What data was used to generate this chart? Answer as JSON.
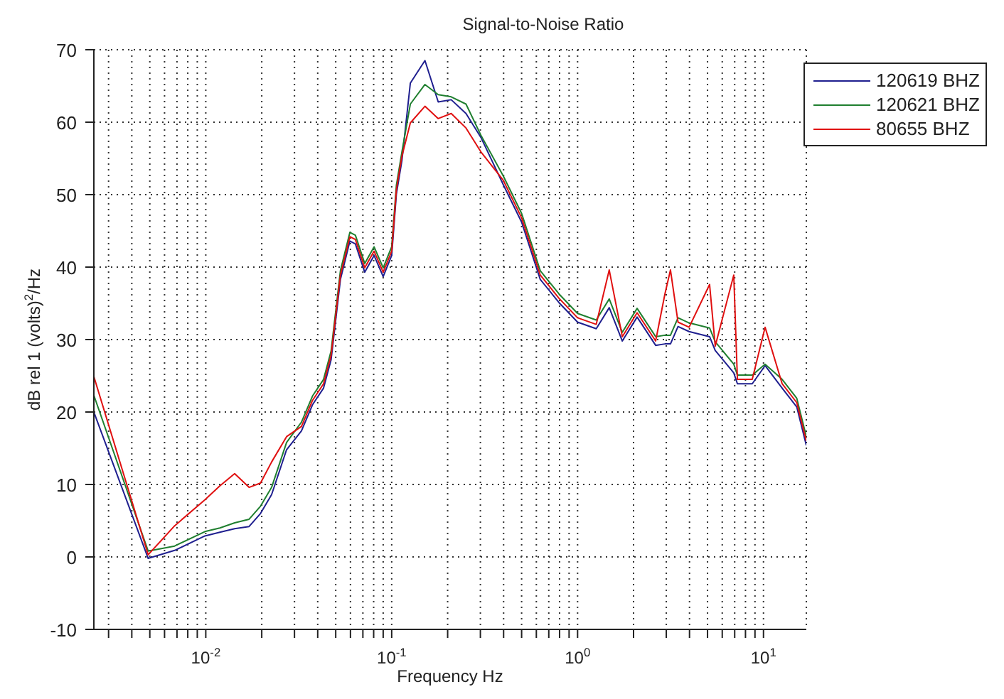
{
  "chart_data": {
    "type": "line",
    "title": "Signal-to-Noise Ratio",
    "xlabel": "Frequency Hz",
    "ylabel": "dB rel 1 (volts)$^{2}$/Hz",
    "log": "x",
    "grid": true,
    "legend": "top right",
    "marker": "none",
    "line_style": "solid",
    "xlim": [
      0.0025,
      17
    ],
    "ylim": [
      -10,
      70
    ],
    "xticks": [
      {
        "value": 0.003,
        "label": null
      },
      {
        "value": 0.004,
        "label": null
      },
      {
        "value": 0.005,
        "label": null
      },
      {
        "value": 0.006,
        "label": null
      },
      {
        "value": 0.007,
        "label": null
      },
      {
        "value": 0.008,
        "label": null
      },
      {
        "value": 0.009,
        "label": null
      },
      {
        "value": 0.01,
        "label": "10$^{-2}$"
      },
      {
        "value": 0.02,
        "label": null
      },
      {
        "value": 0.03,
        "label": null
      },
      {
        "value": 0.04,
        "label": null
      },
      {
        "value": 0.05,
        "label": null
      },
      {
        "value": 0.06,
        "label": null
      },
      {
        "value": 0.07,
        "label": null
      },
      {
        "value": 0.08,
        "label": null
      },
      {
        "value": 0.09,
        "label": null
      },
      {
        "value": 0.1,
        "label": "10$^{-1}$"
      },
      {
        "value": 0.2,
        "label": null
      },
      {
        "value": 0.3,
        "label": null
      },
      {
        "value": 0.4,
        "label": null
      },
      {
        "value": 0.5,
        "label": null
      },
      {
        "value": 0.6,
        "label": null
      },
      {
        "value": 0.7,
        "label": null
      },
      {
        "value": 0.8,
        "label": null
      },
      {
        "value": 0.9,
        "label": null
      },
      {
        "value": 1,
        "label": "10$^{0}$"
      },
      {
        "value": 2,
        "label": null
      },
      {
        "value": 3,
        "label": null
      },
      {
        "value": 4,
        "label": null
      },
      {
        "value": 5,
        "label": null
      },
      {
        "value": 6,
        "label": null
      },
      {
        "value": 7,
        "label": null
      },
      {
        "value": 8,
        "label": null
      },
      {
        "value": 9,
        "label": null
      },
      {
        "value": 10,
        "label": "10$^{1}$"
      }
    ],
    "yticks": [
      -10,
      0,
      10,
      20,
      30,
      40,
      50,
      60,
      70
    ],
    "x": [
      0.0025,
      0.0049,
      0.0068,
      0.0099,
      0.0119,
      0.0143,
      0.0171,
      0.0197,
      0.0226,
      0.0272,
      0.0327,
      0.0375,
      0.043,
      0.0472,
      0.053,
      0.0596,
      0.0638,
      0.0716,
      0.0804,
      0.09,
      0.1,
      0.106,
      0.1135,
      0.126,
      0.151,
      0.178,
      0.209,
      0.251,
      0.302,
      0.398,
      0.5,
      0.63,
      0.794,
      1,
      1.26,
      1.48,
      1.74,
      2.09,
      2.63,
      2.95,
      3.16,
      3.47,
      3.98,
      5.13,
      5.5,
      6.92,
      7.24,
      8.7,
      10.2,
      12.6,
      15.1,
      17
    ],
    "series": [
      {
        "name": "120619 BHZ",
        "color": "#1f1f8f",
        "values": [
          20,
          -0.2,
          0.9,
          2.9,
          3.4,
          3.9,
          4.2,
          6,
          8.6,
          14.8,
          17.4,
          21,
          23.3,
          27.2,
          38.3,
          43.6,
          43.2,
          39.3,
          41.6,
          38.7,
          41.6,
          50.1,
          54.7,
          65.4,
          68.5,
          62.8,
          63.1,
          61.2,
          57.9,
          51.4,
          46.2,
          38.3,
          35.1,
          32.4,
          31.5,
          34.4,
          29.8,
          33.1,
          29.2,
          29.4,
          29.4,
          31.8,
          31.1,
          30.4,
          28.5,
          25.4,
          23.9,
          23.9,
          26.4,
          23.3,
          20.7,
          15.4
        ]
      },
      {
        "name": "120621 BHZ",
        "color": "#1f7f2f",
        "values": [
          22.3,
          0.8,
          1.5,
          3.5,
          4,
          4.7,
          5.2,
          7,
          9.6,
          15.8,
          18.6,
          22.2,
          24.5,
          28.4,
          39.5,
          44.8,
          44.4,
          40.5,
          42.8,
          39.9,
          42.8,
          51.3,
          55.9,
          62.5,
          65.2,
          63.8,
          63.5,
          62.5,
          58.2,
          52.6,
          47.4,
          39.5,
          36.3,
          33.6,
          32.7,
          35.6,
          31,
          34.3,
          30.4,
          30.6,
          30.6,
          33,
          32.3,
          31.6,
          29.7,
          26.6,
          25.1,
          25.1,
          26.6,
          24.5,
          21.9,
          16.6
        ]
      },
      {
        "name": "80655 BHZ",
        "color": "#e01010",
        "values": [
          24.9,
          0.3,
          4.3,
          7.9,
          9.8,
          11.5,
          9.6,
          10.2,
          13.1,
          16.6,
          18,
          21.6,
          23.9,
          27.8,
          38.9,
          44.2,
          43.8,
          39.9,
          42.2,
          39.3,
          42.2,
          50.7,
          55.3,
          59.9,
          62.2,
          60.5,
          61.2,
          59.2,
          55.9,
          52,
          46.8,
          38.9,
          35.7,
          33,
          32.1,
          39.6,
          30.4,
          33.7,
          29.8,
          36.3,
          39.6,
          32.4,
          31.7,
          37.6,
          29.1,
          38.9,
          24.5,
          24.5,
          31.7,
          23.9,
          21.3,
          16
        ]
      }
    ]
  }
}
